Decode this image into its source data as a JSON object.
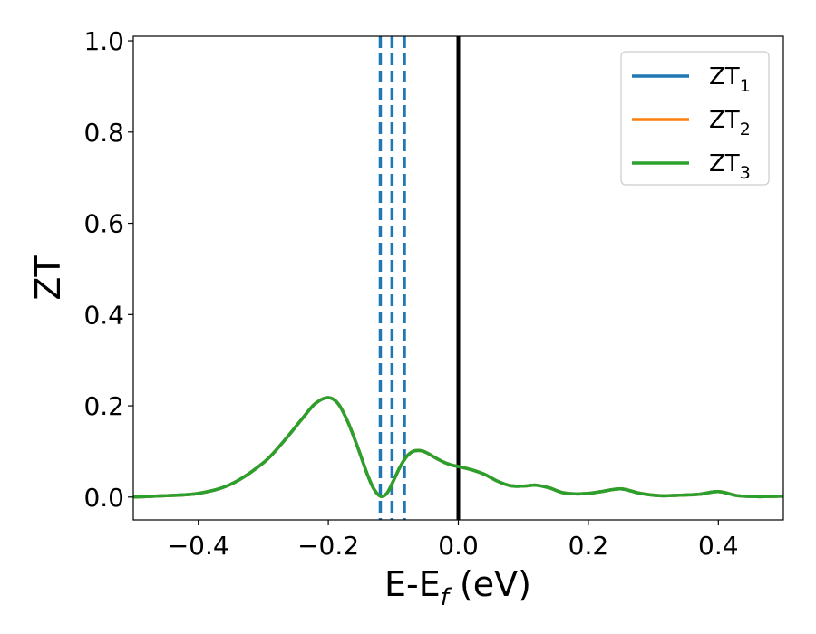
{
  "chart_data": {
    "type": "line",
    "xlabel": "E-E",
    "xlabel_sub": "f",
    "xlabel_unit": " (eV)",
    "ylabel": "ZT",
    "xlim": [
      -0.5,
      0.5
    ],
    "ylim": [
      -0.05,
      1.01
    ],
    "xticks": [
      -0.4,
      -0.2,
      0.0,
      0.2,
      0.4
    ],
    "xtick_labels": [
      "−0.4",
      "−0.2",
      "0.0",
      "0.2",
      "0.4"
    ],
    "yticks": [
      0.0,
      0.2,
      0.4,
      0.6,
      0.8,
      1.0
    ],
    "ytick_labels": [
      "0.0",
      "0.2",
      "0.4",
      "0.6",
      "0.8",
      "1.0"
    ],
    "grid": false,
    "legend_position": "top-right",
    "colors": {
      "zt1": "#1f77b4",
      "zt2": "#ff7f0e",
      "zt3": "#2ca02c",
      "fermi": "#000000"
    },
    "x": [
      -0.5,
      -0.45,
      -0.4,
      -0.35,
      -0.3,
      -0.27,
      -0.24,
      -0.22,
      -0.2,
      -0.185,
      -0.17,
      -0.155,
      -0.14,
      -0.13,
      -0.12,
      -0.11,
      -0.1,
      -0.09,
      -0.08,
      -0.07,
      -0.06,
      -0.05,
      -0.04,
      -0.03,
      -0.02,
      -0.01,
      0.0,
      0.02,
      0.04,
      0.06,
      0.08,
      0.1,
      0.12,
      0.14,
      0.16,
      0.18,
      0.2,
      0.22,
      0.25,
      0.28,
      0.31,
      0.34,
      0.37,
      0.4,
      0.43,
      0.46,
      0.5
    ],
    "series": [
      {
        "name": "ZT",
        "sub": "1",
        "color_key": "zt1",
        "values": [
          0.0,
          0.003,
          0.008,
          0.028,
          0.075,
          0.12,
          0.172,
          0.205,
          0.218,
          0.205,
          0.165,
          0.11,
          0.05,
          0.018,
          0.002,
          0.008,
          0.035,
          0.065,
          0.088,
          0.1,
          0.102,
          0.098,
          0.09,
          0.082,
          0.075,
          0.07,
          0.067,
          0.06,
          0.05,
          0.035,
          0.025,
          0.024,
          0.026,
          0.02,
          0.01,
          0.007,
          0.008,
          0.012,
          0.018,
          0.008,
          0.003,
          0.004,
          0.006,
          0.012,
          0.003,
          0.001,
          0.002
        ]
      },
      {
        "name": "ZT",
        "sub": "2",
        "color_key": "zt2",
        "values": [
          0.0,
          0.003,
          0.008,
          0.028,
          0.075,
          0.12,
          0.172,
          0.205,
          0.218,
          0.205,
          0.165,
          0.11,
          0.05,
          0.018,
          0.002,
          0.008,
          0.035,
          0.065,
          0.088,
          0.1,
          0.102,
          0.098,
          0.09,
          0.082,
          0.075,
          0.07,
          0.067,
          0.06,
          0.05,
          0.035,
          0.025,
          0.024,
          0.026,
          0.02,
          0.01,
          0.007,
          0.008,
          0.012,
          0.018,
          0.008,
          0.003,
          0.004,
          0.006,
          0.012,
          0.003,
          0.001,
          0.002
        ]
      },
      {
        "name": "ZT",
        "sub": "3",
        "color_key": "zt3",
        "values": [
          0.0,
          0.003,
          0.008,
          0.028,
          0.075,
          0.12,
          0.172,
          0.205,
          0.218,
          0.205,
          0.165,
          0.11,
          0.05,
          0.018,
          0.002,
          0.008,
          0.035,
          0.065,
          0.088,
          0.1,
          0.102,
          0.098,
          0.09,
          0.082,
          0.075,
          0.07,
          0.067,
          0.06,
          0.05,
          0.035,
          0.025,
          0.024,
          0.026,
          0.02,
          0.01,
          0.007,
          0.008,
          0.012,
          0.018,
          0.008,
          0.003,
          0.004,
          0.006,
          0.012,
          0.003,
          0.001,
          0.002
        ]
      }
    ],
    "vertical_lines": [
      {
        "x": -0.12,
        "style": "dashed",
        "color_key": "zt1"
      },
      {
        "x": -0.102,
        "style": "dashed",
        "color_key": "zt1"
      },
      {
        "x": -0.083,
        "style": "dashed",
        "color_key": "zt1"
      },
      {
        "x": 0.0,
        "style": "solid",
        "color_key": "fermi"
      }
    ]
  }
}
